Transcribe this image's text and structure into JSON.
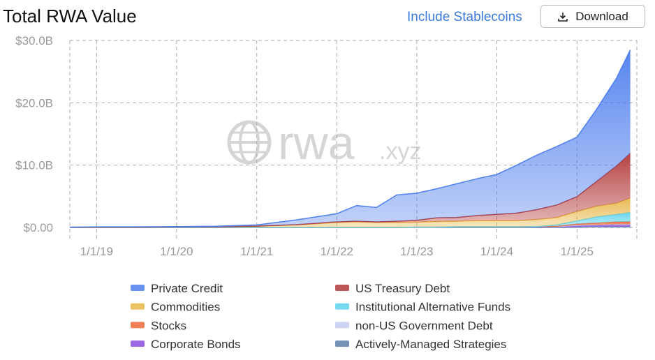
{
  "header": {
    "title": "Total RWA Value",
    "toggle": "Include Stablecoins",
    "button": "Download"
  },
  "watermark": {
    "main": "rwa",
    "domain": ".xyz"
  },
  "chart_data": {
    "type": "stacked-area",
    "x": [
      "9/1/18",
      "1/1/19",
      "7/1/19",
      "1/1/20",
      "7/1/20",
      "1/1/21",
      "7/1/21",
      "1/1/22",
      "4/1/22",
      "7/1/22",
      "10/1/22",
      "1/1/23",
      "4/1/23",
      "7/1/23",
      "10/1/23",
      "1/1/24",
      "4/1/24",
      "7/1/24",
      "10/1/24",
      "1/1/25",
      "4/1/25",
      "7/1/25",
      "9/1/25"
    ],
    "xlim": [
      "9/1/18",
      "10/1/25"
    ],
    "xticks": [
      "1/1/19",
      "1/1/20",
      "1/1/21",
      "1/1/22",
      "1/1/23",
      "1/1/24",
      "1/1/25"
    ],
    "ylim": [
      0,
      30
    ],
    "yticks": [
      {
        "value": 0,
        "label": "$0.00"
      },
      {
        "value": 10,
        "label": "$10.0B"
      },
      {
        "value": 20,
        "label": "$20.0B"
      },
      {
        "value": 30,
        "label": "$30.0B"
      }
    ],
    "grid": true,
    "series": [
      {
        "name": "Private Credit",
        "color": "#4f7fee",
        "values": [
          0.02,
          0.05,
          0.05,
          0.07,
          0.1,
          0.18,
          0.75,
          1.3,
          2.5,
          2.3,
          4.2,
          4.35,
          4.65,
          5.4,
          5.9,
          6.4,
          7.7,
          8.75,
          9.4,
          9.55,
          11.6,
          14.1,
          16.6
        ]
      },
      {
        "name": "US Treasury Debt",
        "color": "#b33a3a",
        "values": [
          0,
          0,
          0,
          0,
          0,
          0.02,
          0.05,
          0.1,
          0.1,
          0.1,
          0.2,
          0.3,
          0.6,
          0.6,
          0.8,
          1.0,
          1.2,
          1.6,
          2.0,
          2.4,
          4.0,
          6.0,
          7.2
        ]
      },
      {
        "name": "Commodities",
        "color": "#e8b84a",
        "values": [
          0.03,
          0.05,
          0.05,
          0.08,
          0.1,
          0.2,
          0.4,
          0.8,
          0.9,
          0.8,
          0.8,
          0.8,
          0.9,
          0.9,
          1.0,
          1.0,
          1.0,
          1.1,
          1.2,
          1.5,
          1.7,
          1.8,
          2.3
        ]
      },
      {
        "name": "Institutional Alternative Funds",
        "color": "#5fd3ee",
        "values": [
          0,
          0,
          0,
          0,
          0,
          0,
          0,
          0,
          0,
          0,
          0,
          0,
          0,
          0,
          0,
          0,
          0,
          0,
          0.2,
          0.5,
          1.0,
          1.2,
          1.5
        ]
      },
      {
        "name": "Stocks",
        "color": "#f06a3a",
        "values": [
          0,
          0,
          0,
          0,
          0,
          0,
          0,
          0,
          0,
          0,
          0,
          0,
          0,
          0,
          0,
          0,
          0,
          0,
          0.05,
          0.2,
          0.3,
          0.4,
          0.4
        ]
      },
      {
        "name": "non-US Government Debt",
        "color": "#c3cdee",
        "values": [
          0,
          0,
          0,
          0,
          0,
          0,
          0,
          0,
          0,
          0,
          0,
          0,
          0,
          0,
          0,
          0,
          0,
          0.05,
          0.05,
          0.1,
          0.1,
          0.1,
          0.1
        ]
      },
      {
        "name": "Corporate Bonds",
        "color": "#8a4fe0",
        "values": [
          0,
          0,
          0,
          0,
          0,
          0,
          0,
          0,
          0,
          0,
          0,
          0.05,
          0.05,
          0.1,
          0.1,
          0.1,
          0.1,
          0.1,
          0.1,
          0.2,
          0.2,
          0.3,
          0.3
        ]
      },
      {
        "name": "Actively-Managed Strategies",
        "color": "#5c7fa6",
        "values": [
          0,
          0,
          0,
          0,
          0,
          0,
          0,
          0,
          0,
          0,
          0,
          0,
          0,
          0,
          0,
          0,
          0,
          0,
          0,
          0.05,
          0.1,
          0.1,
          0.1
        ]
      }
    ]
  }
}
